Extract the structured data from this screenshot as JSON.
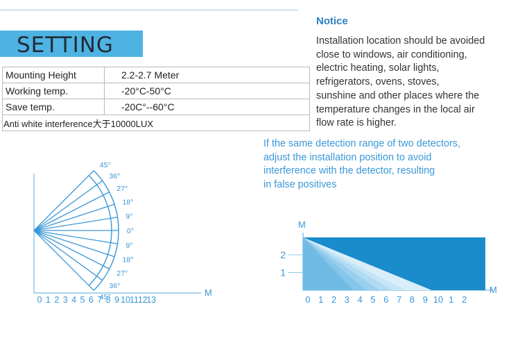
{
  "setting": {
    "title": "SETTING"
  },
  "specs": [
    {
      "label": "Mounting Height",
      "value": "2.2-2.7  Meter"
    },
    {
      "label": "Working temp.",
      "value": "-20°C-50°C"
    },
    {
      "label": " Save temp.",
      "value": "-20C°--60°C"
    },
    {
      "combined": "Anti white interference大于10000LUX"
    }
  ],
  "notice": {
    "title": "Notice",
    "lines": [
      "Installation location should be avoided",
      "close to windows, air conditioning,",
      "electric heating, solar lights,",
      "refrigerators, ovens, stoves,",
      "sunshine and other places where the",
      "temperature changes in the local air",
      "flow rate is higher."
    ]
  },
  "warning": {
    "lines": [
      "If the same detection range of two detectors,",
      "adjust the installation position to avoid",
      "interference with the detector, resulting",
      "in false positives"
    ]
  },
  "colors": {
    "banner": "#4eb3e3",
    "accent": "#3a97d8",
    "axis": "#8fc6ea",
    "fill_dark": "#1a8bcb"
  },
  "chart_angle": {
    "x_ticks": [
      "0",
      "1",
      "2",
      "3",
      "4",
      "5",
      "6",
      "7",
      "8",
      "9",
      "10",
      "11",
      "12",
      "13"
    ],
    "x_unit": "M",
    "angles": [
      "45°",
      "36°",
      "27°",
      "18°",
      "9°",
      "0°",
      "9°",
      "18°",
      "27°",
      "36°",
      "45°"
    ],
    "angle_values": [
      45,
      36,
      27,
      18,
      9,
      0,
      -9,
      -18,
      -27,
      -36,
      -45
    ]
  },
  "chart_range": {
    "x_ticks": [
      "0",
      "1",
      "2",
      "3",
      "4",
      "5",
      "6",
      "7",
      "8",
      "9",
      "10",
      "1",
      "2"
    ],
    "x_unit": "M",
    "y_ticks": [
      "2",
      "1"
    ],
    "y_unit": "M",
    "ground_points_m": [
      3.5,
      4.5,
      5.5,
      6.5,
      7.5,
      9.5
    ]
  }
}
